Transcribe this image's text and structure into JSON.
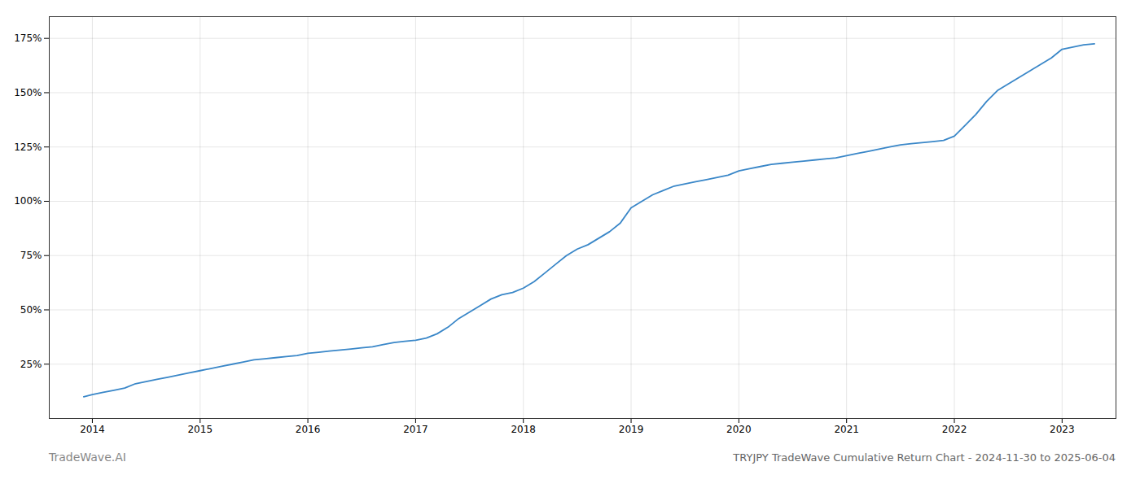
{
  "chart_data": {
    "type": "line",
    "title": "TRYJPY TradeWave Cumulative Return Chart - 2024-11-30 to 2025-06-04",
    "annotations": [
      "TradeWave.AI"
    ],
    "x": [
      2013.92,
      2014.0,
      2014.1,
      2014.2,
      2014.3,
      2014.4,
      2014.5,
      2014.6,
      2014.7,
      2014.8,
      2014.9,
      2015.0,
      2015.1,
      2015.2,
      2015.3,
      2015.4,
      2015.5,
      2015.6,
      2015.7,
      2015.8,
      2015.9,
      2016.0,
      2016.1,
      2016.2,
      2016.3,
      2016.4,
      2016.5,
      2016.6,
      2016.7,
      2016.8,
      2016.9,
      2017.0,
      2017.1,
      2017.2,
      2017.3,
      2017.4,
      2017.5,
      2017.6,
      2017.7,
      2017.8,
      2017.9,
      2018.0,
      2018.1,
      2018.2,
      2018.3,
      2018.4,
      2018.5,
      2018.6,
      2018.7,
      2018.8,
      2018.9,
      2019.0,
      2019.1,
      2019.2,
      2019.3,
      2019.4,
      2019.5,
      2019.6,
      2019.7,
      2019.8,
      2019.9,
      2020.0,
      2020.1,
      2020.2,
      2020.3,
      2020.4,
      2020.5,
      2020.6,
      2020.7,
      2020.8,
      2020.9,
      2021.0,
      2021.1,
      2021.2,
      2021.3,
      2021.4,
      2021.5,
      2021.6,
      2021.7,
      2021.8,
      2021.9,
      2022.0,
      2022.1,
      2022.2,
      2022.3,
      2022.4,
      2022.5,
      2022.6,
      2022.7,
      2022.8,
      2022.9,
      2023.0,
      2023.1,
      2023.2,
      2023.3
    ],
    "values": [
      10,
      11,
      12,
      13,
      14,
      16,
      17,
      18,
      19,
      20,
      21,
      22,
      23,
      24,
      25,
      26,
      27,
      27.5,
      28,
      28.5,
      29,
      30,
      30.5,
      31,
      31.5,
      32,
      32.5,
      33,
      34,
      35,
      35.5,
      36,
      37,
      39,
      42,
      46,
      49,
      52,
      55,
      57,
      58,
      60,
      63,
      67,
      71,
      75,
      78,
      80,
      83,
      86,
      90,
      97,
      100,
      103,
      105,
      107,
      108,
      109,
      110,
      111,
      112,
      114,
      115,
      116,
      117,
      117.5,
      118,
      118.5,
      119,
      119.5,
      120,
      121,
      122,
      123,
      124,
      125,
      126,
      126.5,
      127,
      127.5,
      128,
      130,
      135,
      140,
      146,
      151,
      154,
      157,
      160,
      163,
      166,
      170,
      171,
      172,
      172.5
    ],
    "color": "#3a87c8",
    "xlim": [
      2013.6,
      2023.5
    ],
    "xticks": [
      2014,
      2015,
      2016,
      2017,
      2018,
      2019,
      2020,
      2021,
      2022,
      2023
    ],
    "ylim": [
      0,
      185
    ],
    "yticks": [
      {
        "value": 25,
        "label": "25%"
      },
      {
        "value": 50,
        "label": "50%"
      },
      {
        "value": 75,
        "label": "75%"
      },
      {
        "value": 100,
        "label": "100%"
      },
      {
        "value": 125,
        "label": "125%"
      },
      {
        "value": 150,
        "label": "150%"
      },
      {
        "value": 175,
        "label": "175%"
      }
    ],
    "grid": true
  }
}
